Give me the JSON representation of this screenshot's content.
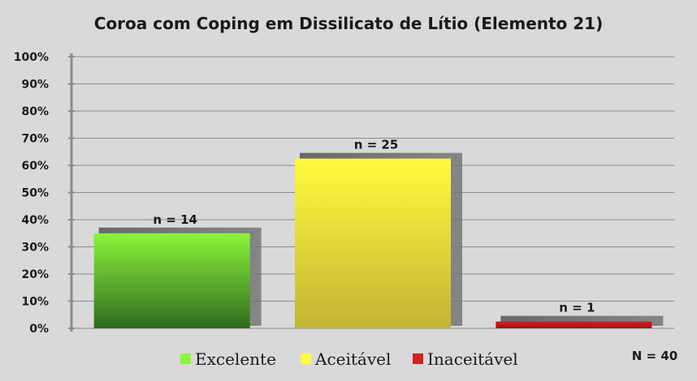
{
  "chart_data": {
    "type": "bar",
    "title": "Coroa com Coping em Dissilicato  de Lítio (Elemento 21)",
    "categories": [
      "Excelente",
      "Aceitável",
      "Inaceitável"
    ],
    "values": [
      35,
      62.5,
      2.5
    ],
    "value_unit": "%",
    "data_labels": [
      "n = 14",
      "n = 25",
      "n = 1"
    ],
    "ylim": [
      0,
      100
    ],
    "yticks": [
      "0%",
      "10%",
      "20%",
      "30%",
      "40%",
      "50%",
      "60%",
      "70%",
      "80%",
      "90%",
      "100%"
    ],
    "grid": true,
    "legend": {
      "placement": "bottom",
      "entries": [
        "Excelente",
        "Aceitável",
        "Inaceitável"
      ]
    },
    "colors": {
      "Excelente": [
        "#8cf53a",
        "#2f6b1e"
      ],
      "Aceitável": [
        "#fffb3d",
        "#c2b434"
      ],
      "Inaceitável": [
        "#d42020",
        "#a31212"
      ]
    },
    "annotation": "N = 40"
  }
}
